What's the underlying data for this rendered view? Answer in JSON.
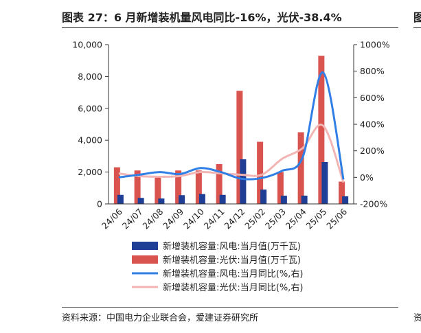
{
  "header": {
    "title": "图表 27：6 月新增装机量风电同比-16%，光伏-38.4%",
    "next_panel_title_fragment": "图"
  },
  "footer": {
    "source": "资料来源：中国电力企业联合会，爱建证券研究所",
    "next_panel_source_fragment": "资"
  },
  "colors": {
    "wind_bar": "#1f3f96",
    "solar_bar": "#d9534f",
    "wind_line": "#2f7fe6",
    "solar_line": "#f3b4b4",
    "axis": "#333333"
  },
  "chart_data": {
    "type": "bar",
    "categories": [
      "24/06",
      "24/07",
      "24/08",
      "24/09",
      "24/10",
      "24/11",
      "24/12",
      "25/02",
      "25/03",
      "25/04",
      "25/05",
      "25/06"
    ],
    "y_left": {
      "min": 0,
      "max": 10000,
      "ticks": [
        "0",
        "2,000",
        "4,000",
        "6,000",
        "8,000",
        "10,000"
      ]
    },
    "y_right": {
      "min": -200,
      "max": 1000,
      "ticks": [
        "-200%",
        "0%",
        "200%",
        "400%",
        "600%",
        "800%",
        "1000%"
      ]
    },
    "series": [
      {
        "name": "新增装机容量:风电:当月值(万千瓦)",
        "type": "bar",
        "axis": "left",
        "values": [
          570,
          380,
          340,
          550,
          620,
          570,
          2800,
          900,
          520,
          520,
          2630,
          480
        ]
      },
      {
        "name": "新增装机容量:光伏:当月值(万千瓦)",
        "type": "bar",
        "axis": "left",
        "values": [
          2300,
          2100,
          1700,
          2100,
          2100,
          2500,
          7100,
          3900,
          2000,
          4500,
          9300,
          1400
        ]
      },
      {
        "name": "新增装机容量:风电:当月同比(%,右)",
        "type": "line",
        "axis": "right",
        "values": [
          0,
          20,
          40,
          25,
          70,
          40,
          -10,
          -5,
          50,
          150,
          790,
          -16
        ]
      },
      {
        "name": "新增装机容量:光伏:当月同比(%,右)",
        "type": "line",
        "axis": "right",
        "values": [
          30,
          10,
          5,
          10,
          40,
          30,
          20,
          20,
          140,
          220,
          390,
          -38.4
        ]
      }
    ]
  }
}
